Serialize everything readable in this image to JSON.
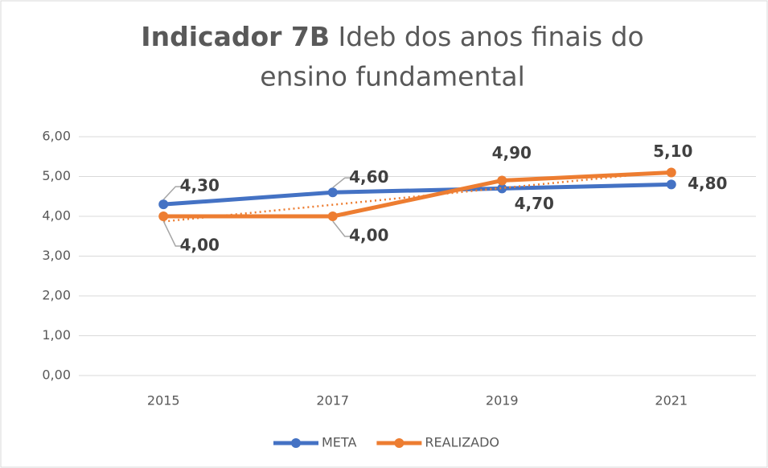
{
  "chart_data": {
    "type": "line",
    "title": {
      "emphasis": "Indicador 7B",
      "lines": [
        "Ideb dos anos finais do",
        "ensino fundamental"
      ]
    },
    "categories": [
      "2015",
      "2017",
      "2019",
      "2021"
    ],
    "series": [
      {
        "name": "META",
        "color": "#4472c4",
        "values": [
          4.3,
          4.6,
          4.7,
          4.8
        ],
        "value_labels": [
          "4,30",
          "4,60",
          "4,70",
          "4,80"
        ]
      },
      {
        "name": "REALIZADO",
        "color": "#ed7d31",
        "values": [
          4.0,
          4.0,
          4.9,
          5.1
        ],
        "value_labels": [
          "4,00",
          "4,00",
          "4,90",
          "5,10"
        ],
        "trendline": true
      }
    ],
    "ylim": [
      0,
      6
    ],
    "yticks": [
      {
        "value": 0,
        "label": "0,00"
      },
      {
        "value": 1,
        "label": "1,00"
      },
      {
        "value": 2,
        "label": "2,00"
      },
      {
        "value": 3,
        "label": "3,00"
      },
      {
        "value": 4,
        "label": "4,00"
      },
      {
        "value": 5,
        "label": "5,00"
      },
      {
        "value": 6,
        "label": "6,00"
      }
    ],
    "grid": true,
    "legend": "bottom"
  }
}
